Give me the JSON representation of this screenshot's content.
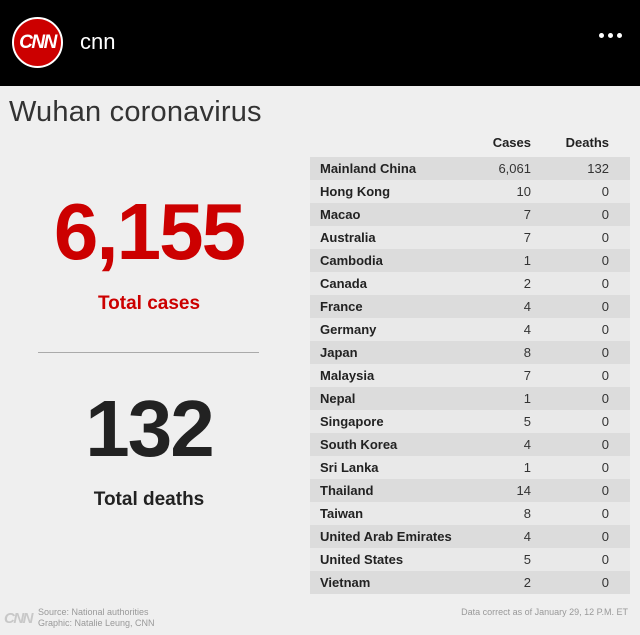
{
  "header": {
    "avatar_text": "CNN",
    "username": "cnn",
    "more_icon": "more-horizontal-icon"
  },
  "graphic": {
    "title": "Wuhan coronavirus",
    "total_cases": "6,155",
    "total_cases_label": "Total cases",
    "total_deaths": "132",
    "total_deaths_label": "Total deaths",
    "table": {
      "headers": [
        "Cases",
        "Deaths"
      ],
      "rows": [
        {
          "country": "Mainland China",
          "cases": "6,061",
          "deaths": "132"
        },
        {
          "country": "Hong Kong",
          "cases": "10",
          "deaths": "0"
        },
        {
          "country": "Macao",
          "cases": "7",
          "deaths": "0"
        },
        {
          "country": "Australia",
          "cases": "7",
          "deaths": "0"
        },
        {
          "country": "Cambodia",
          "cases": "1",
          "deaths": "0"
        },
        {
          "country": "Canada",
          "cases": "2",
          "deaths": "0"
        },
        {
          "country": "France",
          "cases": "4",
          "deaths": "0"
        },
        {
          "country": "Germany",
          "cases": "4",
          "deaths": "0"
        },
        {
          "country": "Japan",
          "cases": "8",
          "deaths": "0"
        },
        {
          "country": "Malaysia",
          "cases": "7",
          "deaths": "0"
        },
        {
          "country": "Nepal",
          "cases": "1",
          "deaths": "0"
        },
        {
          "country": "Singapore",
          "cases": "5",
          "deaths": "0"
        },
        {
          "country": "South Korea",
          "cases": "4",
          "deaths": "0"
        },
        {
          "country": "Sri Lanka",
          "cases": "1",
          "deaths": "0"
        },
        {
          "country": "Thailand",
          "cases": "14",
          "deaths": "0"
        },
        {
          "country": "Taiwan",
          "cases": "8",
          "deaths": "0"
        },
        {
          "country": "United Arab Emirates",
          "cases": "4",
          "deaths": "0"
        },
        {
          "country": "United States",
          "cases": "5",
          "deaths": "0"
        },
        {
          "country": "Vietnam",
          "cases": "2",
          "deaths": "0"
        }
      ]
    },
    "footer": {
      "logo_text": "CNN",
      "source": "Source: National authorities",
      "graphic_credit": "Graphic: Natalie Leung, CNN",
      "data_note": "Data correct as of January 29, 12 P.M. ET"
    }
  },
  "colors": {
    "accent_red": "#cc0000",
    "header_bg": "#000000",
    "body_bg": "#efefef"
  }
}
